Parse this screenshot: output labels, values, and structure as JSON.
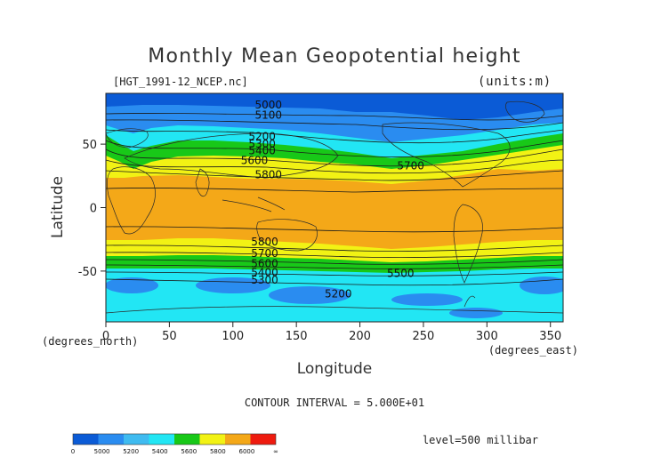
{
  "chart_data": {
    "type": "heatmap",
    "title": "Monthly Mean Geopotential height",
    "file_label": "[HGT_1991-12_NCEP.nc]",
    "units_label": "(units:m)",
    "xlabel": "Longitude",
    "ylabel": "Latitude",
    "x_unit_label": "(degrees_east)",
    "y_unit_label": "(degrees_north)",
    "xlim": [
      0,
      360
    ],
    "ylim": [
      -90,
      90
    ],
    "x_ticks": [
      0,
      50,
      100,
      150,
      200,
      250,
      300,
      350
    ],
    "y_ticks": [
      50,
      0,
      -50
    ],
    "contour_interval_label": "CONTOUR INTERVAL = 5.000E+01",
    "level_label": "level=500 millibar",
    "contour_labels": [
      {
        "text": "5000",
        "lon": 128,
        "lat": 81
      },
      {
        "text": "5100",
        "lon": 128,
        "lat": 73
      },
      {
        "text": "5200",
        "lon": 123,
        "lat": 56
      },
      {
        "text": "5300",
        "lon": 123,
        "lat": 50
      },
      {
        "text": "5400",
        "lon": 123,
        "lat": 45
      },
      {
        "text": "5600",
        "lon": 117,
        "lat": 37
      },
      {
        "text": "5700",
        "lon": 240,
        "lat": 33
      },
      {
        "text": "5800",
        "lon": 128,
        "lat": 26
      },
      {
        "text": "5800",
        "lon": 125,
        "lat": -27
      },
      {
        "text": "5700",
        "lon": 125,
        "lat": -36
      },
      {
        "text": "5600",
        "lon": 125,
        "lat": -44
      },
      {
        "text": "5400",
        "lon": 125,
        "lat": -51
      },
      {
        "text": "5300",
        "lon": 125,
        "lat": -57
      },
      {
        "text": "5500",
        "lon": 232,
        "lat": -52
      },
      {
        "text": "5200",
        "lon": 183,
        "lat": -68
      }
    ],
    "color_scale": {
      "tick_labels": [
        "0",
        "5000",
        "5200",
        "5400",
        "5600",
        "5800",
        "6000",
        "∞"
      ],
      "colors": [
        "#0b5bd6",
        "#2a8cf0",
        "#3fbbf0",
        "#22e6f4",
        "#18c818",
        "#f2f214",
        "#f4a818",
        "#ee1b0f"
      ]
    }
  }
}
